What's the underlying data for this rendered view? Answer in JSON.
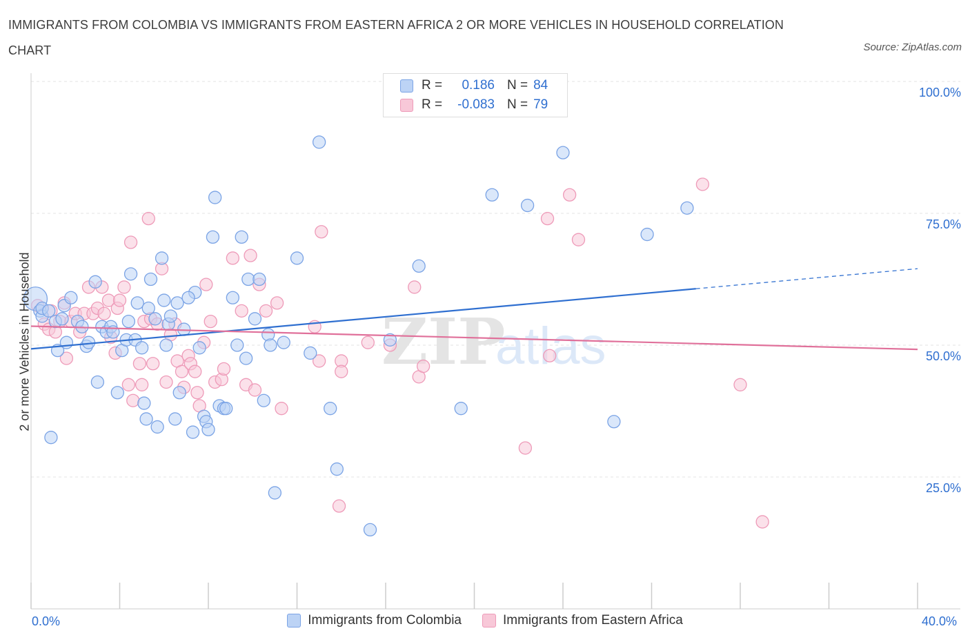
{
  "title": "IMMIGRANTS FROM COLOMBIA VS IMMIGRANTS FROM EASTERN AFRICA 2 OR MORE VEHICLES IN HOUSEHOLD CORRELATION CHART",
  "source": "Source: ZipAtlas.com",
  "watermark": {
    "zip": "ZIP",
    "atlas": "atlas"
  },
  "stats": {
    "r_label": "R =",
    "n_label": "N =",
    "blue": {
      "r": "0.186",
      "n": "84"
    },
    "pink": {
      "r": "-0.083",
      "n": "79"
    }
  },
  "legend": {
    "blue_label": "Immigrants from Colombia",
    "pink_label": "Immigrants from Eastern Africa"
  },
  "axis": {
    "x_min_label": "0.0%",
    "x_max_label": "40.0%",
    "y_label": "2 or more Vehicles in Household",
    "y_ticks": [
      "100.0%",
      "75.0%",
      "50.0%",
      "25.0%"
    ]
  },
  "colors": {
    "blue_fill": "#bcd3f5",
    "blue_stroke": "#7aa3e5",
    "blue_line": "#2f6fd0",
    "pink_fill": "#f8c8d8",
    "pink_stroke": "#ee9ab8",
    "pink_line": "#e0709a",
    "tick_text": "#2f6fd0"
  },
  "chart_data": {
    "type": "scatter",
    "xlim": [
      0,
      40
    ],
    "ylim": [
      0,
      100
    ],
    "grid": true,
    "legend_position": "bottom",
    "series": [
      {
        "name": "Immigrants from Colombia",
        "color": "#7aa3e5",
        "trend": {
          "x0": 0,
          "y0": 49.3,
          "x1": 30,
          "y1": 60.7,
          "dashed_to_x": 40,
          "dashed_to_y": 64.5
        },
        "points": [
          [
            0.2,
            58.8
          ],
          [
            0.4,
            56.5
          ],
          [
            0.5,
            55.5
          ],
          [
            0.9,
            32.5
          ],
          [
            1.1,
            54.5
          ],
          [
            1.2,
            49.0
          ],
          [
            1.5,
            57.5
          ],
          [
            1.6,
            50.5
          ],
          [
            1.8,
            59.0
          ],
          [
            2.1,
            54.5
          ],
          [
            2.3,
            53.5
          ],
          [
            2.5,
            49.8
          ],
          [
            2.6,
            50.5
          ],
          [
            2.9,
            62.0
          ],
          [
            3.0,
            43.0
          ],
          [
            3.2,
            53.5
          ],
          [
            3.4,
            52.5
          ],
          [
            3.6,
            53.5
          ],
          [
            3.9,
            41.0
          ],
          [
            4.1,
            49.0
          ],
          [
            4.3,
            51.0
          ],
          [
            4.4,
            54.5
          ],
          [
            4.5,
            63.5
          ],
          [
            4.7,
            51.0
          ],
          [
            4.8,
            58.0
          ],
          [
            5.0,
            49.5
          ],
          [
            5.1,
            39.0
          ],
          [
            5.2,
            36.0
          ],
          [
            5.3,
            57.0
          ],
          [
            5.4,
            62.5
          ],
          [
            5.7,
            34.5
          ],
          [
            5.9,
            66.5
          ],
          [
            6.0,
            58.5
          ],
          [
            6.1,
            50.0
          ],
          [
            6.2,
            54.0
          ],
          [
            6.5,
            36.0
          ],
          [
            6.6,
            58.0
          ],
          [
            6.7,
            41.0
          ],
          [
            6.9,
            53.0
          ],
          [
            7.3,
            33.5
          ],
          [
            7.4,
            60.0
          ],
          [
            7.6,
            49.5
          ],
          [
            7.8,
            36.5
          ],
          [
            7.9,
            35.5
          ],
          [
            8.0,
            34.0
          ],
          [
            8.3,
            78.0
          ],
          [
            8.5,
            38.5
          ],
          [
            8.7,
            38.0
          ],
          [
            8.8,
            38.0
          ],
          [
            8.2,
            70.5
          ],
          [
            9.1,
            59.0
          ],
          [
            9.3,
            50.0
          ],
          [
            9.5,
            70.5
          ],
          [
            9.7,
            47.5
          ],
          [
            9.8,
            62.5
          ],
          [
            10.1,
            55.0
          ],
          [
            10.3,
            62.5
          ],
          [
            10.5,
            39.5
          ],
          [
            10.7,
            52.0
          ],
          [
            10.8,
            50.0
          ],
          [
            11.0,
            22.0
          ],
          [
            11.4,
            50.5
          ],
          [
            12.0,
            66.5
          ],
          [
            12.6,
            48.5
          ],
          [
            13.0,
            88.5
          ],
          [
            13.5,
            38.0
          ],
          [
            13.8,
            26.5
          ],
          [
            15.3,
            15.0
          ],
          [
            16.2,
            51.0
          ],
          [
            17.5,
            65.0
          ],
          [
            19.4,
            38.0
          ],
          [
            20.8,
            78.5
          ],
          [
            22.4,
            76.5
          ],
          [
            24.0,
            86.5
          ],
          [
            26.3,
            35.5
          ],
          [
            27.8,
            71.0
          ],
          [
            29.6,
            76.0
          ],
          [
            0.5,
            57.0
          ],
          [
            1.4,
            55.0
          ],
          [
            0.8,
            56.5
          ],
          [
            3.7,
            52.5
          ],
          [
            5.6,
            55.0
          ],
          [
            7.1,
            59.0
          ],
          [
            6.3,
            55.5
          ]
        ]
      },
      {
        "name": "Immigrants from Eastern Africa",
        "color": "#ee9ab8",
        "trend": {
          "x0": 0,
          "y0": 53.6,
          "x1": 40,
          "y1": 49.2
        },
        "points": [
          [
            0.3,
            57.5
          ],
          [
            0.6,
            54.0
          ],
          [
            0.8,
            53.0
          ],
          [
            0.9,
            56.5
          ],
          [
            1.1,
            52.5
          ],
          [
            1.3,
            54.5
          ],
          [
            1.5,
            58.0
          ],
          [
            1.6,
            47.5
          ],
          [
            1.8,
            54.5
          ],
          [
            2.0,
            56.0
          ],
          [
            2.2,
            52.5
          ],
          [
            2.4,
            56.0
          ],
          [
            2.6,
            61.0
          ],
          [
            2.8,
            56.0
          ],
          [
            3.0,
            57.0
          ],
          [
            3.2,
            61.0
          ],
          [
            3.3,
            56.0
          ],
          [
            3.5,
            58.5
          ],
          [
            3.6,
            51.5
          ],
          [
            3.8,
            48.5
          ],
          [
            3.9,
            57.0
          ],
          [
            4.0,
            58.5
          ],
          [
            4.2,
            61.0
          ],
          [
            4.4,
            42.5
          ],
          [
            4.6,
            39.5
          ],
          [
            4.5,
            69.5
          ],
          [
            4.9,
            46.5
          ],
          [
            5.0,
            42.5
          ],
          [
            5.1,
            54.5
          ],
          [
            5.3,
            74.0
          ],
          [
            5.4,
            55.0
          ],
          [
            5.5,
            46.5
          ],
          [
            5.7,
            54.0
          ],
          [
            5.9,
            64.5
          ],
          [
            6.1,
            43.0
          ],
          [
            6.3,
            52.0
          ],
          [
            6.5,
            54.0
          ],
          [
            6.6,
            47.0
          ],
          [
            6.8,
            45.0
          ],
          [
            6.9,
            42.0
          ],
          [
            7.1,
            48.0
          ],
          [
            7.2,
            46.5
          ],
          [
            7.4,
            45.0
          ],
          [
            7.5,
            41.0
          ],
          [
            7.6,
            38.5
          ],
          [
            7.8,
            50.5
          ],
          [
            7.9,
            61.5
          ],
          [
            8.1,
            54.5
          ],
          [
            8.3,
            43.0
          ],
          [
            8.6,
            43.5
          ],
          [
            8.7,
            45.5
          ],
          [
            9.1,
            66.5
          ],
          [
            9.5,
            56.5
          ],
          [
            9.7,
            42.5
          ],
          [
            9.9,
            67.0
          ],
          [
            10.1,
            41.5
          ],
          [
            10.3,
            61.5
          ],
          [
            10.6,
            56.5
          ],
          [
            11.1,
            58.0
          ],
          [
            11.3,
            38.0
          ],
          [
            12.8,
            53.5
          ],
          [
            13.0,
            47.0
          ],
          [
            13.1,
            71.5
          ],
          [
            14.0,
            47.0
          ],
          [
            14.0,
            45.0
          ],
          [
            13.9,
            19.5
          ],
          [
            15.2,
            50.5
          ],
          [
            16.2,
            50.0
          ],
          [
            17.3,
            61.0
          ],
          [
            17.5,
            44.0
          ],
          [
            17.7,
            46.0
          ],
          [
            22.3,
            30.5
          ],
          [
            23.3,
            74.0
          ],
          [
            23.4,
            48.0
          ],
          [
            24.3,
            78.5
          ],
          [
            24.7,
            70.0
          ],
          [
            30.3,
            80.5
          ],
          [
            32.0,
            42.5
          ],
          [
            33.0,
            16.5
          ]
        ]
      }
    ]
  }
}
